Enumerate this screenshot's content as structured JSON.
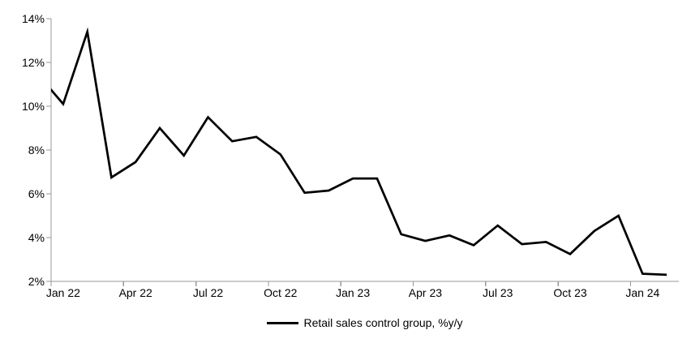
{
  "chart_data": {
    "type": "line",
    "title": "",
    "xlabel": "",
    "ylabel": "",
    "x_labels_all": [
      "Dec 21",
      "Jan 22",
      "Feb 22",
      "Mar 22",
      "Apr 22",
      "May 22",
      "Jun 22",
      "Jul 22",
      "Aug 22",
      "Sep 22",
      "Oct 22",
      "Nov 22",
      "Dec 22",
      "Jan 23",
      "Feb 23",
      "Mar 23",
      "Apr 23",
      "May 23",
      "Jun 23",
      "Jul 23",
      "Aug 23",
      "Sep 23",
      "Oct 23",
      "Nov 23",
      "Dec 23",
      "Jan 24",
      "Feb 24"
    ],
    "series": [
      {
        "name": "Retail sales control group, %y/y",
        "values": [
          11.4,
          10.1,
          13.4,
          6.75,
          7.45,
          9.0,
          7.75,
          9.5,
          8.4,
          8.6,
          7.8,
          6.05,
          6.15,
          6.7,
          6.7,
          4.15,
          3.85,
          4.1,
          3.65,
          4.55,
          3.7,
          3.8,
          3.25,
          4.3,
          5.0,
          2.35,
          2.3
        ]
      }
    ],
    "offplot_leading_points": 1,
    "x_axis_tick_labels": [
      "Jan 22",
      "Apr 22",
      "Jul 22",
      "Oct 22",
      "Jan 23",
      "Apr 23",
      "Jul 23",
      "Oct 23",
      "Jan 24"
    ],
    "x_ticks_every_n_categories": 3,
    "ylim": [
      2,
      14
    ],
    "y_tick_step": 2,
    "y_tick_labels": [
      "2%",
      "4%",
      "6%",
      "8%",
      "10%",
      "12%",
      "14%"
    ],
    "grid": false,
    "legend_position": "bottom-center"
  },
  "legend": {
    "label": "Retail sales control group, %y/y"
  },
  "colors": {
    "series_line": "#000000",
    "axis": "#999999",
    "tick_text": "#000000",
    "background": "#ffffff"
  }
}
